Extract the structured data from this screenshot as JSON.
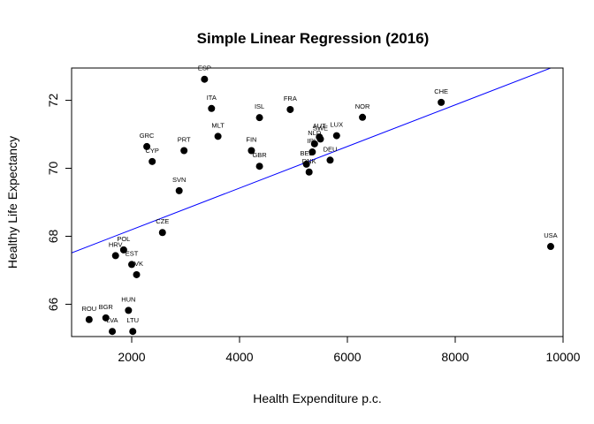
{
  "chart_data": {
    "type": "scatter",
    "title": "Simple Linear Regression (2016)",
    "xlabel": "Health Expenditure p.c.",
    "ylabel": "Healthy Life Expectancy",
    "xlim": [
      885,
      10000
    ],
    "ylim": [
      65.05,
      72.95
    ],
    "xticks": [
      2000,
      4000,
      6000,
      8000,
      10000
    ],
    "yticks": [
      66,
      68,
      70,
      72
    ],
    "grid": false,
    "legend": "none",
    "colors": {
      "points": "#000000",
      "regression_line": "#0000ff"
    },
    "regression_line": {
      "intercept": 66.97,
      "slope": 0.000612
    },
    "points": [
      {
        "label": "ESP",
        "x": 3350,
        "y": 72.62
      },
      {
        "label": "ITA",
        "x": 3480,
        "y": 71.76
      },
      {
        "label": "ISL",
        "x": 4370,
        "y": 71.49
      },
      {
        "label": "FRA",
        "x": 4940,
        "y": 71.73
      },
      {
        "label": "CHE",
        "x": 7740,
        "y": 71.94
      },
      {
        "label": "NOR",
        "x": 6280,
        "y": 71.5
      },
      {
        "label": "MLT",
        "x": 3600,
        "y": 70.94
      },
      {
        "label": "AUT",
        "x": 5480,
        "y": 70.92
      },
      {
        "label": "LUX",
        "x": 5800,
        "y": 70.96
      },
      {
        "label": "SWE",
        "x": 5500,
        "y": 70.86
      },
      {
        "label": "NLD",
        "x": 5390,
        "y": 70.72
      },
      {
        "label": "IRL",
        "x": 5350,
        "y": 70.48
      },
      {
        "label": "GRC",
        "x": 2280,
        "y": 70.64
      },
      {
        "label": "CYP",
        "x": 2380,
        "y": 70.2
      },
      {
        "label": "PRT",
        "x": 2970,
        "y": 70.52
      },
      {
        "label": "FIN",
        "x": 4220,
        "y": 70.52
      },
      {
        "label": "GBR",
        "x": 4370,
        "y": 70.06
      },
      {
        "label": "BEL",
        "x": 5240,
        "y": 70.12
      },
      {
        "label": "DNK",
        "x": 5290,
        "y": 69.89
      },
      {
        "label": "DEU",
        "x": 5680,
        "y": 70.24
      },
      {
        "label": "SVN",
        "x": 2880,
        "y": 69.34
      },
      {
        "label": "CZE",
        "x": 2570,
        "y": 68.11
      },
      {
        "label": "USA",
        "x": 9770,
        "y": 67.7
      },
      {
        "label": "POL",
        "x": 1850,
        "y": 67.6
      },
      {
        "label": "HRV",
        "x": 1700,
        "y": 67.43
      },
      {
        "label": "EST",
        "x": 2000,
        "y": 67.17
      },
      {
        "label": "SVK",
        "x": 2090,
        "y": 66.87
      },
      {
        "label": "HUN",
        "x": 1940,
        "y": 65.82
      },
      {
        "label": "ROU",
        "x": 1210,
        "y": 65.55
      },
      {
        "label": "BGR",
        "x": 1520,
        "y": 65.6
      },
      {
        "label": "LVA",
        "x": 1640,
        "y": 65.2
      },
      {
        "label": "LTU",
        "x": 2020,
        "y": 65.2
      }
    ]
  }
}
